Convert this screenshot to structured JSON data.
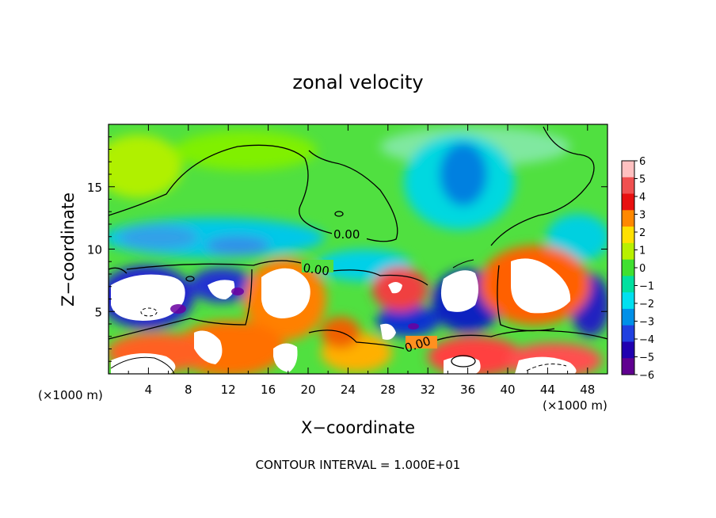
{
  "chart_data": {
    "type": "heatmap",
    "title": "zonal velocity",
    "xlabel": "X−coordinate",
    "ylabel": "Z−coordinate",
    "x_unit_left": "(×1000 m)",
    "x_unit_right": "(×1000 m)",
    "footer": "CONTOUR INTERVAL = 1.000E+01",
    "xlim": [
      0,
      50
    ],
    "ylim": [
      0,
      20
    ],
    "x_ticks": [
      "4",
      "8",
      "12",
      "16",
      "20",
      "24",
      "28",
      "32",
      "36",
      "40",
      "44",
      "48"
    ],
    "y_ticks": [
      "5",
      "10",
      "15"
    ],
    "contour_labels": [
      "0.00",
      "0.00",
      "0.00"
    ],
    "colorbar": {
      "labels": [
        "6",
        "5",
        "4",
        "3",
        "2",
        "1",
        "0",
        "−1",
        "−2",
        "−3",
        "−4",
        "−5",
        "−6"
      ],
      "colors": [
        "#ffc0c0",
        "#f05050",
        "#e81010",
        "#ff8800",
        "#ffe000",
        "#b8f000",
        "#40e030",
        "#00e0a0",
        "#00e0f0",
        "#0090e8",
        "#2040e0",
        "#2000b0",
        "#600090"
      ],
      "saturation_low": "#ffffff",
      "saturation_high": "#ffffff"
    }
  }
}
